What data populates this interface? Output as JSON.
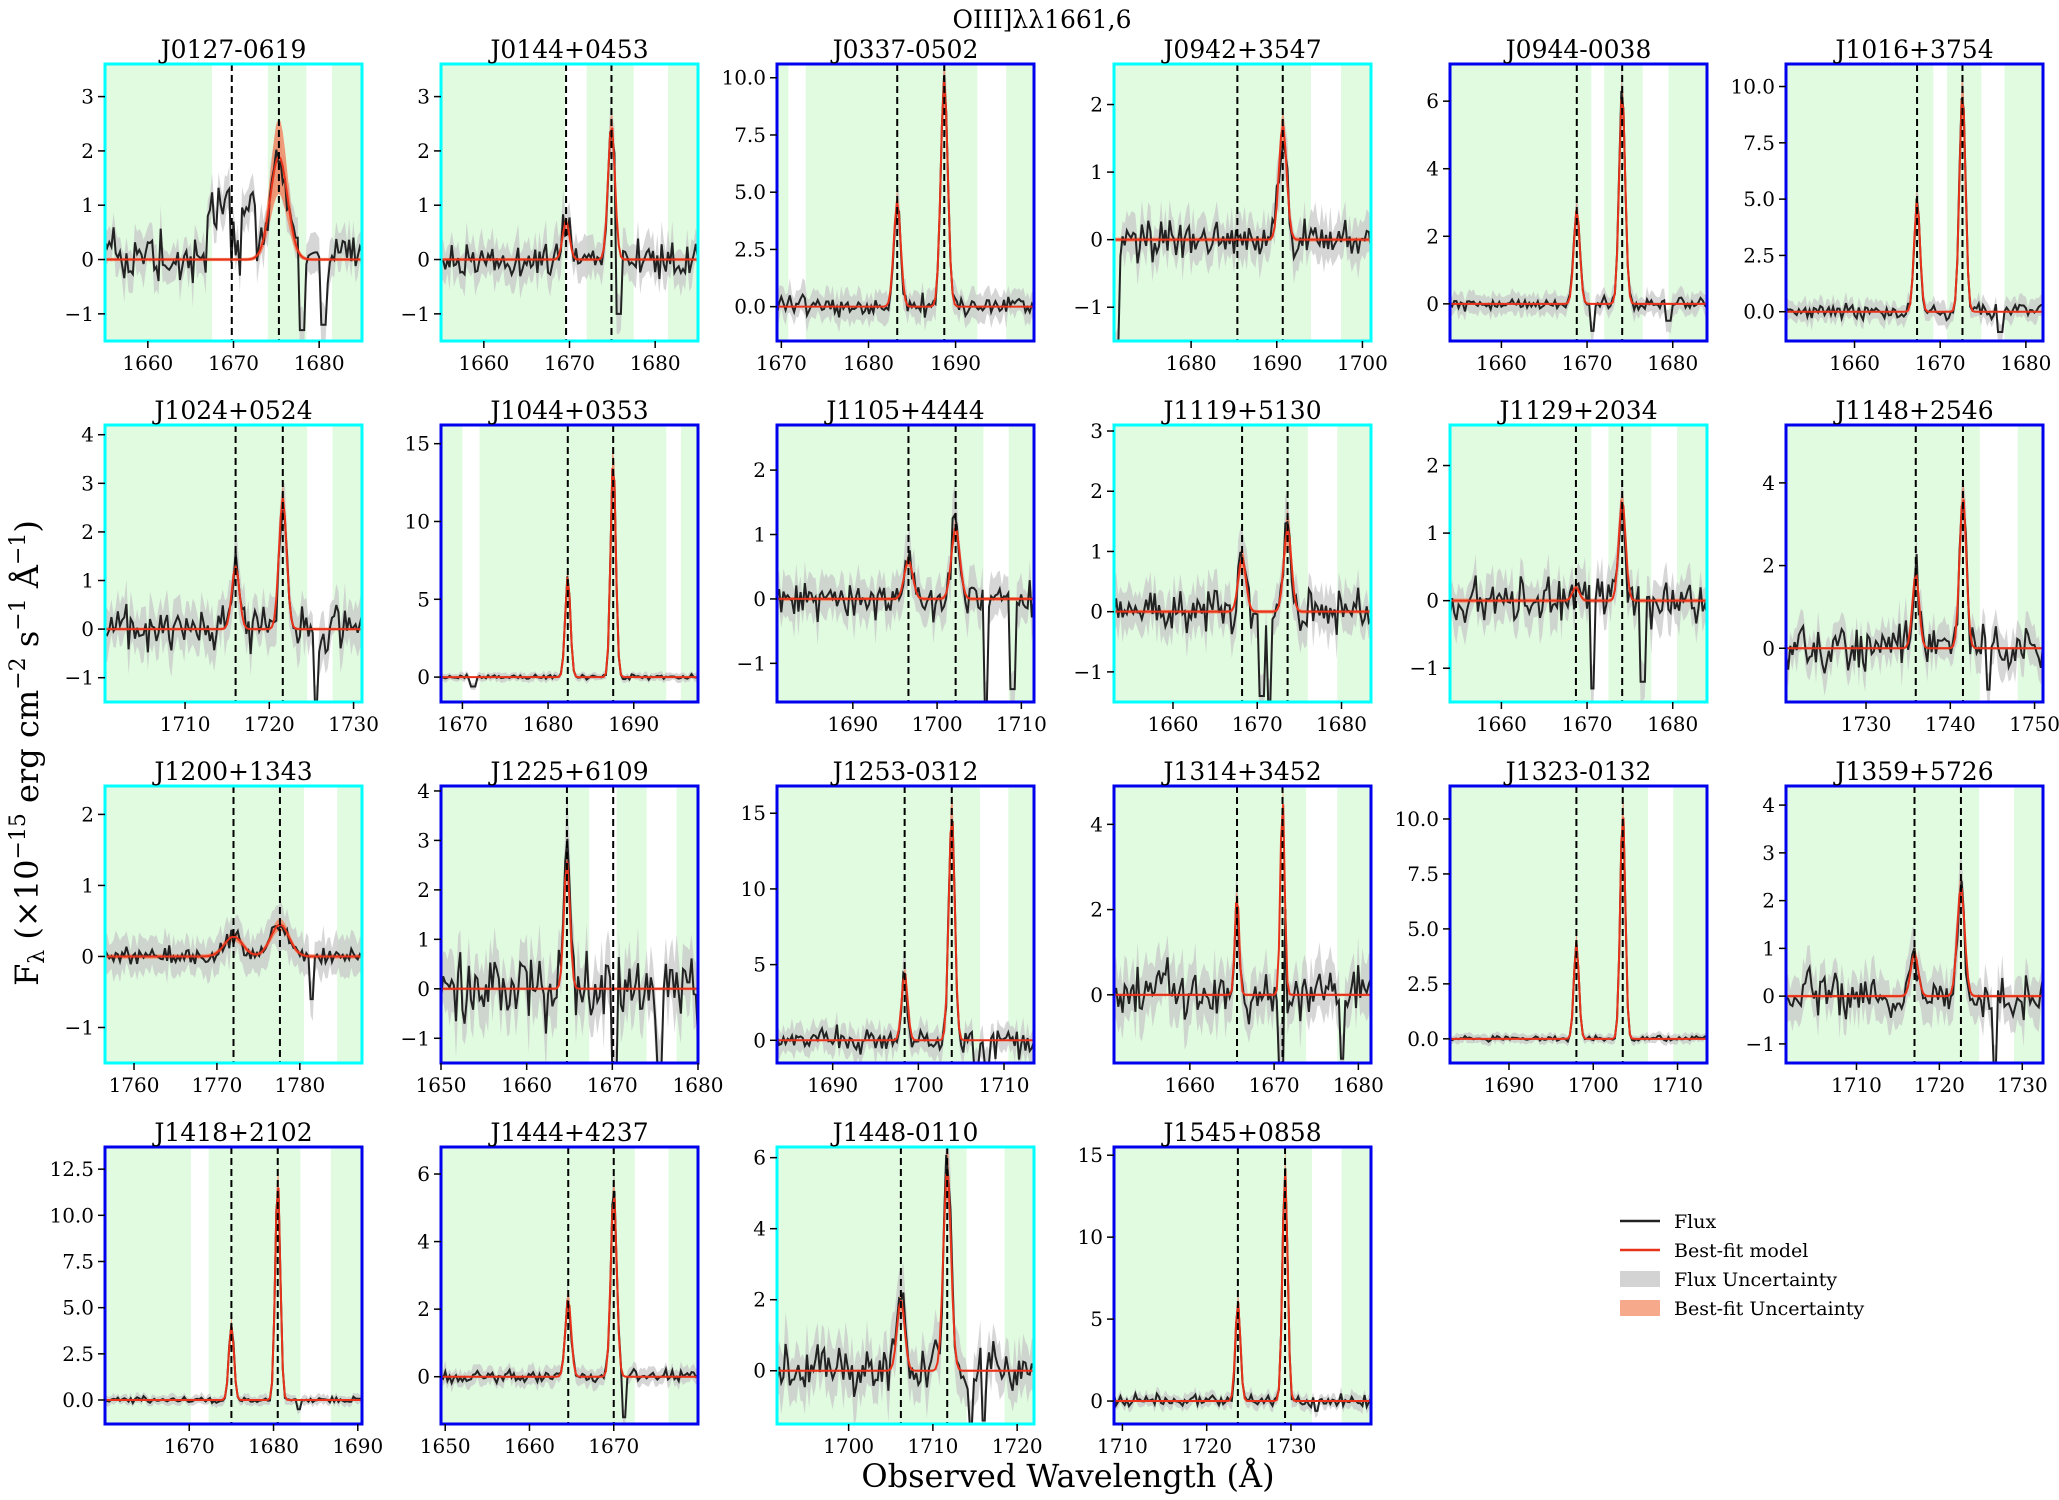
{
  "figure": {
    "title": "OIII]λλ1661,6",
    "xlabel": "Observed Wavelength (Å)",
    "ylabel": "F_λ (×10^-15 erg cm^-2 s^-1 Å^-1)",
    "ylabel_parts": {
      "main": "F",
      "sub": "λ",
      "open": " (×10",
      "exp1": "−15",
      "erg": " erg cm",
      "exp2": "−2",
      "s": " s",
      "exp3": "−1",
      "ang": " Å",
      "exp4": "−1",
      "close": ")"
    }
  },
  "legend": {
    "placement": "lower-right",
    "items": [
      {
        "label": "Flux",
        "kind": "line",
        "color": "#222222"
      },
      {
        "label": "Best-fit model",
        "kind": "line",
        "color": "#e8321a"
      },
      {
        "label": "Flux Uncertainty",
        "kind": "patch",
        "color": "#d3d3d3"
      },
      {
        "label": "Best-fit Uncertainty",
        "kind": "patch",
        "color": "#f7a98c"
      }
    ]
  },
  "colors": {
    "flux": "#222222",
    "model": "#e8321a",
    "flux_uncertainty": "#c8c8c8",
    "fit_uncertainty": "#f4845f",
    "fit_region": "#e0fbe0",
    "frame_cyan": "#00ffff",
    "frame_blue": "#0000ee",
    "line_marker": "#000000"
  },
  "chart_data": [
    {
      "type": "line",
      "title": "J0127-0619",
      "frame": "cyan",
      "xlim": [
        1655,
        1685
      ],
      "ylim": [
        -1.5,
        3.6
      ],
      "xticks": [
        1660,
        1670,
        1680
      ],
      "yticks": [
        -1,
        0,
        1,
        2,
        3
      ],
      "lines": [
        1669.8,
        1675.3
      ],
      "amps": [
        0.0,
        1.9
      ],
      "sigma": 1.0,
      "fitu": 0.35,
      "green": [
        [
          1655,
          1667.5
        ],
        [
          1674,
          1678.5
        ],
        [
          1681.5,
          1685
        ]
      ],
      "noise": 0.45,
      "unc": 0.35,
      "seed": 3,
      "pre": [
        [
          1667,
          1669.5,
          0.9
        ],
        [
          1671,
          1672.5,
          0.9
        ]
      ],
      "dips": [
        [
          1678,
          -1.3
        ],
        [
          1680.5,
          -1.2
        ]
      ]
    },
    {
      "type": "line",
      "title": "J0144+0453",
      "frame": "cyan",
      "xlim": [
        1655,
        1685
      ],
      "ylim": [
        -1.5,
        3.6
      ],
      "xticks": [
        1660,
        1670,
        1680
      ],
      "yticks": [
        -1,
        0,
        1,
        2,
        3
      ],
      "lines": [
        1669.6,
        1674.9
      ],
      "amps": [
        0.7,
        2.5
      ],
      "sigma": 0.4,
      "fitu": 0.1,
      "green": [
        [
          1655,
          1669.5
        ],
        [
          1672,
          1677.5
        ],
        [
          1681.5,
          1685
        ]
      ],
      "noise": 0.35,
      "unc": 0.35,
      "seed": 7,
      "dips": [
        [
          1675.8,
          -1.0
        ]
      ]
    },
    {
      "type": "line",
      "title": "J0337-0502",
      "frame": "blue",
      "xlim": [
        1669.5,
        1699
      ],
      "ylim": [
        -1.5,
        10.6
      ],
      "xticks": [
        1670,
        1680,
        1690
      ],
      "yticks": [
        0.0,
        2.5,
        5.0,
        7.5,
        10.0
      ],
      "ytick_format": "0.0",
      "lines": [
        1683.3,
        1688.7
      ],
      "amps": [
        4.6,
        9.9
      ],
      "sigma": 0.4,
      "fitu": 0.1,
      "green": [
        [
          1669.5,
          1670.8
        ],
        [
          1672.8,
          1692.5
        ],
        [
          1695.8,
          1699
        ]
      ],
      "noise": 0.45,
      "unc": 0.6,
      "seed": 11,
      "dips": []
    },
    {
      "type": "line",
      "title": "J0942+3547",
      "frame": "cyan",
      "xlim": [
        1671,
        1701
      ],
      "ylim": [
        -1.5,
        2.6
      ],
      "xticks": [
        1680,
        1690,
        1700
      ],
      "yticks": [
        -1,
        0,
        1,
        2
      ],
      "lines": [
        1685.4,
        1690.7
      ],
      "amps": [
        0.0,
        1.7
      ],
      "sigma": 0.45,
      "fitu": 0.12,
      "green": [
        [
          1671,
          1694
        ],
        [
          1697.5,
          1701
        ]
      ],
      "noise": 0.3,
      "unc": 0.3,
      "seed": 13,
      "dips": [
        [
          1671.3,
          -1.6
        ]
      ]
    },
    {
      "type": "line",
      "title": "J0944-0038",
      "frame": "blue",
      "xlim": [
        1654,
        1684
      ],
      "ylim": [
        -1.1,
        7.1
      ],
      "xticks": [
        1660,
        1670,
        1680
      ],
      "yticks": [
        0,
        2,
        4,
        6
      ],
      "lines": [
        1668.8,
        1674.1
      ],
      "amps": [
        2.8,
        6.3
      ],
      "sigma": 0.35,
      "fitu": 0.08,
      "green": [
        [
          1654,
          1670.5
        ],
        [
          1672,
          1676.5
        ],
        [
          1679.5,
          1684
        ]
      ],
      "noise": 0.18,
      "unc": 0.3,
      "seed": 17,
      "dips": [
        [
          1670.6,
          -0.8
        ],
        [
          1679.5,
          -0.5
        ]
      ]
    },
    {
      "type": "line",
      "title": "J1016+3754",
      "frame": "blue",
      "xlim": [
        1652,
        1682
      ],
      "ylim": [
        -1.3,
        11.0
      ],
      "xticks": [
        1660,
        1670,
        1680
      ],
      "yticks": [
        0.0,
        2.5,
        5.0,
        7.5,
        10.0
      ],
      "ytick_format": "0.0",
      "lines": [
        1667.3,
        1672.6
      ],
      "amps": [
        4.9,
        9.8
      ],
      "sigma": 0.35,
      "fitu": 0.1,
      "green": [
        [
          1652,
          1669.2
        ],
        [
          1670.8,
          1674.8
        ],
        [
          1677.5,
          1682
        ]
      ],
      "noise": 0.35,
      "unc": 0.45,
      "seed": 19,
      "dips": [
        [
          1677,
          -0.9
        ]
      ]
    },
    {
      "type": "line",
      "title": "J1024+0524",
      "frame": "cyan",
      "xlim": [
        1700.5,
        1731
      ],
      "ylim": [
        -1.5,
        4.2
      ],
      "xticks": [
        1710,
        1720,
        1730
      ],
      "yticks": [
        -1,
        0,
        1,
        2,
        3,
        4
      ],
      "lines": [
        1716.0,
        1721.6
      ],
      "amps": [
        1.3,
        2.7
      ],
      "sigma": 0.45,
      "fitu": 0.1,
      "green": [
        [
          1700.5,
          1724.5
        ],
        [
          1727.5,
          1731
        ]
      ],
      "noise": 0.45,
      "unc": 0.45,
      "seed": 23,
      "dips": [
        [
          1725.6,
          -1.5
        ]
      ]
    },
    {
      "type": "line",
      "title": "J1044+0353",
      "frame": "blue",
      "xlim": [
        1667.5,
        1697.5
      ],
      "ylim": [
        -1.6,
        16.2
      ],
      "xticks": [
        1670,
        1680,
        1690
      ],
      "yticks": [
        0,
        5,
        10,
        15
      ],
      "lines": [
        1682.3,
        1687.6
      ],
      "amps": [
        6.5,
        14.2
      ],
      "sigma": 0.3,
      "fitu": 0.1,
      "green": [
        [
          1667.5,
          1670
        ],
        [
          1672,
          1693.8
        ],
        [
          1695.5,
          1697.5
        ]
      ],
      "noise": 0.15,
      "unc": 0.25,
      "seed": 29,
      "dips": [
        [
          1671.2,
          -0.6
        ]
      ]
    },
    {
      "type": "line",
      "title": "J1105+4444",
      "frame": "blue",
      "xlim": [
        1681,
        1711.5
      ],
      "ylim": [
        -1.6,
        2.7
      ],
      "xticks": [
        1690,
        1700,
        1710
      ],
      "yticks": [
        -1,
        0,
        1,
        2
      ],
      "lines": [
        1696.6,
        1702.2
      ],
      "amps": [
        0.6,
        1.1
      ],
      "sigma": 0.5,
      "fitu": 0.1,
      "green": [
        [
          1681,
          1705.5
        ],
        [
          1708.5,
          1711.5
        ]
      ],
      "noise": 0.3,
      "unc": 0.3,
      "seed": 31,
      "dips": [
        [
          1705.8,
          -1.6
        ],
        [
          1709,
          -1.4
        ]
      ]
    },
    {
      "type": "line",
      "title": "J1119+5130",
      "frame": "cyan",
      "xlim": [
        1653,
        1683.5
      ],
      "ylim": [
        -1.5,
        3.1
      ],
      "xticks": [
        1660,
        1670,
        1680
      ],
      "yticks": [
        -1,
        0,
        1,
        2,
        3
      ],
      "lines": [
        1668.2,
        1673.6
      ],
      "amps": [
        0.9,
        1.4
      ],
      "sigma": 0.45,
      "fitu": 0.2,
      "green": [
        [
          1653,
          1676
        ],
        [
          1679.5,
          1683.5
        ]
      ],
      "noise": 0.35,
      "unc": 0.35,
      "seed": 37,
      "dips": [
        [
          1670.5,
          -1.4
        ],
        [
          1671.5,
          -1.5
        ]
      ]
    },
    {
      "type": "line",
      "title": "J1129+2034",
      "frame": "cyan",
      "xlim": [
        1654,
        1684
      ],
      "ylim": [
        -1.5,
        2.6
      ],
      "xticks": [
        1660,
        1670,
        1680
      ],
      "yticks": [
        -1,
        0,
        1,
        2
      ],
      "lines": [
        1668.7,
        1674.1
      ],
      "amps": [
        0.2,
        1.5
      ],
      "sigma": 0.4,
      "fitu": 0.08,
      "green": [
        [
          1654,
          1670.5
        ],
        [
          1672.5,
          1677.5
        ],
        [
          1680.5,
          1684
        ]
      ],
      "noise": 0.3,
      "unc": 0.3,
      "seed": 41,
      "dips": [
        [
          1670.6,
          -1.3
        ],
        [
          1676.5,
          -1.2
        ]
      ]
    },
    {
      "type": "line",
      "title": "J1148+2546",
      "frame": "blue",
      "xlim": [
        1720.5,
        1751
      ],
      "ylim": [
        -1.3,
        5.4
      ],
      "xticks": [
        1730,
        1740,
        1750
      ],
      "yticks": [
        0,
        2,
        4
      ],
      "lines": [
        1735.9,
        1741.5
      ],
      "amps": [
        1.8,
        3.7
      ],
      "sigma": 0.4,
      "fitu": 0.1,
      "green": [
        [
          1720.5,
          1743.5
        ],
        [
          1748,
          1751
        ]
      ],
      "noise": 0.5,
      "unc": 0.45,
      "seed": 43,
      "dips": [
        [
          1744.5,
          -1.0
        ]
      ]
    },
    {
      "type": "line",
      "title": "J1200+1343",
      "frame": "cyan",
      "xlim": [
        1756.5,
        1787.5
      ],
      "ylim": [
        -1.5,
        2.4
      ],
      "xticks": [
        1760,
        1770,
        1780
      ],
      "yticks": [
        -1,
        0,
        1,
        2
      ],
      "lines": [
        1772.0,
        1777.6
      ],
      "amps": [
        0.28,
        0.45
      ],
      "sigma": 1.1,
      "fitu": 0.12,
      "green": [
        [
          1756.5,
          1780.5
        ],
        [
          1784.5,
          1787.5
        ]
      ],
      "noise": 0.12,
      "unc": 0.25,
      "seed": 47,
      "dips": [
        [
          1781.5,
          -0.6
        ]
      ]
    },
    {
      "type": "line",
      "title": "J1225+6109",
      "frame": "blue",
      "xlim": [
        1650,
        1680
      ],
      "ylim": [
        -1.5,
        4.1
      ],
      "xticks": [
        1650,
        1660,
        1670,
        1680
      ],
      "yticks": [
        -1,
        0,
        1,
        2,
        3,
        4
      ],
      "lines": [
        1664.7,
        1670.1
      ],
      "amps": [
        2.6,
        0.0
      ],
      "sigma": 0.35,
      "fitu": 0.1,
      "green": [
        [
          1650,
          1667.3
        ],
        [
          1670.5,
          1674
        ],
        [
          1677.5,
          1680
        ]
      ],
      "noise": 0.65,
      "unc": 0.6,
      "seed": 53,
      "dips": [
        [
          1670.2,
          -1.7
        ],
        [
          1675.5,
          -1.5
        ]
      ]
    },
    {
      "type": "line",
      "title": "J1253-0312",
      "frame": "blue",
      "xlim": [
        1683.5,
        1713.5
      ],
      "ylim": [
        -1.5,
        16.8
      ],
      "xticks": [
        1690,
        1700,
        1710
      ],
      "yticks": [
        0,
        5,
        10,
        15
      ],
      "lines": [
        1698.4,
        1703.9
      ],
      "amps": [
        4.4,
        15.0
      ],
      "sigma": 0.35,
      "fitu": 0.12,
      "green": [
        [
          1683.5,
          1707.2
        ],
        [
          1710.5,
          1713.5
        ]
      ],
      "noise": 0.8,
      "unc": 0.9,
      "seed": 59,
      "dips": [
        [
          1706.8,
          -1.6
        ],
        [
          1708,
          -1.5
        ]
      ]
    },
    {
      "type": "line",
      "title": "J1314+3452",
      "frame": "blue",
      "xlim": [
        1651,
        1681.5
      ],
      "ylim": [
        -1.6,
        4.9
      ],
      "xticks": [
        1660,
        1670,
        1680
      ],
      "yticks": [
        0,
        2,
        4
      ],
      "lines": [
        1665.6,
        1671.0
      ],
      "amps": [
        2.4,
        4.7
      ],
      "sigma": 0.25,
      "fitu": 0.1,
      "green": [
        [
          1651,
          1673.8
        ],
        [
          1677.5,
          1681.5
        ]
      ],
      "noise": 0.6,
      "unc": 0.6,
      "seed": 61,
      "dips": [
        [
          1670.8,
          -1.6
        ],
        [
          1678,
          -1.5
        ]
      ]
    },
    {
      "type": "line",
      "title": "J1323-0132",
      "frame": "blue",
      "xlim": [
        1683,
        1713.5
      ],
      "ylim": [
        -1.1,
        11.5
      ],
      "xticks": [
        1690,
        1700,
        1710
      ],
      "yticks": [
        0.0,
        2.5,
        5.0,
        7.5,
        10.0
      ],
      "ytick_format": "0.0",
      "lines": [
        1698.0,
        1703.5
      ],
      "amps": [
        4.4,
        10.5
      ],
      "sigma": 0.3,
      "fitu": 0.1,
      "green": [
        [
          1683,
          1706.5
        ],
        [
          1709.5,
          1713.5
        ]
      ],
      "noise": 0.12,
      "unc": 0.2,
      "seed": 67,
      "dips": []
    },
    {
      "type": "line",
      "title": "J1359+5726",
      "frame": "blue",
      "xlim": [
        1701.5,
        1732.5
      ],
      "ylim": [
        -1.4,
        4.4
      ],
      "xticks": [
        1710,
        1720,
        1730
      ],
      "yticks": [
        -1,
        0,
        1,
        2,
        3,
        4
      ],
      "lines": [
        1717.0,
        1722.6
      ],
      "amps": [
        0.9,
        2.3
      ],
      "sigma": 0.45,
      "fitu": 0.12,
      "green": [
        [
          1701.5,
          1724.8
        ],
        [
          1729,
          1732.5
        ]
      ],
      "noise": 0.45,
      "unc": 0.45,
      "seed": 71,
      "dips": [
        [
          1726.7,
          -1.5
        ]
      ]
    },
    {
      "type": "line",
      "title": "J1418+2102",
      "frame": "blue",
      "xlim": [
        1660,
        1690.5
      ],
      "ylim": [
        -1.3,
        13.7
      ],
      "xticks": [
        1670,
        1680,
        1690
      ],
      "yticks": [
        0.0,
        2.5,
        5.0,
        7.5,
        10.0,
        12.5
      ],
      "ytick_format": "0.0",
      "lines": [
        1675.0,
        1680.5
      ],
      "amps": [
        4.1,
        12.0
      ],
      "sigma": 0.3,
      "fitu": 0.1,
      "green": [
        [
          1660,
          1670.2
        ],
        [
          1672.3,
          1683.2
        ],
        [
          1686.8,
          1690.5
        ]
      ],
      "noise": 0.15,
      "unc": 0.25,
      "seed": 73,
      "dips": [
        [
          1683,
          -0.5
        ]
      ]
    },
    {
      "type": "line",
      "title": "J1444+4237",
      "frame": "blue",
      "xlim": [
        1649.5,
        1680
      ],
      "ylim": [
        -1.4,
        6.8
      ],
      "xticks": [
        1650,
        1660,
        1670
      ],
      "yticks": [
        0,
        2,
        4,
        6
      ],
      "lines": [
        1664.6,
        1670.0
      ],
      "amps": [
        2.3,
        5.5
      ],
      "sigma": 0.35,
      "fitu": 0.1,
      "green": [
        [
          1649.5,
          1672.5
        ],
        [
          1676.5,
          1680
        ]
      ],
      "noise": 0.2,
      "unc": 0.25,
      "seed": 79,
      "dips": [
        [
          1671.3,
          -1.2
        ]
      ]
    },
    {
      "type": "line",
      "title": "J1448-0110",
      "frame": "cyan",
      "xlim": [
        1691.5,
        1722
      ],
      "ylim": [
        -1.5,
        6.3
      ],
      "xticks": [
        1700,
        1710,
        1720
      ],
      "yticks": [
        0,
        2,
        4,
        6
      ],
      "lines": [
        1706.2,
        1711.7
      ],
      "amps": [
        2.0,
        5.7
      ],
      "sigma": 0.45,
      "fitu": 0.12,
      "green": [
        [
          1691.5,
          1714
        ],
        [
          1718.5,
          1722
        ]
      ],
      "noise": 0.7,
      "unc": 0.7,
      "seed": 83,
      "dips": [
        [
          1714.5,
          -1.5
        ],
        [
          1716,
          -1.4
        ]
      ]
    },
    {
      "type": "line",
      "title": "J1545+0858",
      "frame": "blue",
      "xlim": [
        1709,
        1739.5
      ],
      "ylim": [
        -1.4,
        15.5
      ],
      "xticks": [
        1710,
        1720,
        1730
      ],
      "yticks": [
        0,
        5,
        10,
        15
      ],
      "lines": [
        1723.7,
        1729.3
      ],
      "amps": [
        6.1,
        14.2
      ],
      "sigma": 0.3,
      "fitu": 0.1,
      "green": [
        [
          1709,
          1732.5
        ],
        [
          1736,
          1739.5
        ]
      ],
      "noise": 0.4,
      "unc": 0.4,
      "seed": 89,
      "dips": [
        [
          1733,
          -0.6
        ]
      ]
    }
  ]
}
